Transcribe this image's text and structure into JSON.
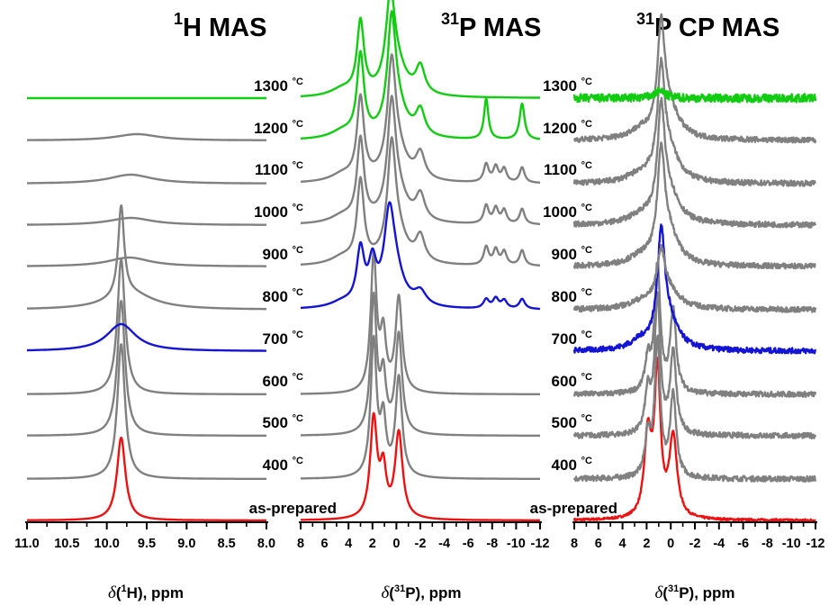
{
  "chart_data": [
    {
      "type": "line",
      "panel": "1H",
      "title": {
        "sup": "1",
        "main": "H MAS"
      },
      "xlabel": {
        "delta": "δ",
        "pre": "(",
        "sup": "1",
        "post": "H), ppm"
      },
      "xlim": [
        11.0,
        8.0
      ],
      "ticks": [
        "11.0",
        "10.5",
        "10.0",
        "9.5",
        "9.0",
        "8.5",
        "8.0"
      ],
      "tick_values": [
        11.0,
        10.5,
        10.0,
        9.5,
        9.0,
        8.5,
        8.0
      ],
      "series": [
        {
          "label": "as-prepared",
          "color": "#ee1111",
          "peaks": [
            [
              9.82,
              0.064,
              92
            ]
          ]
        },
        {
          "label": "400 °C",
          "color": "#808080",
          "peaks": [
            [
              9.82,
              0.058,
              150
            ]
          ]
        },
        {
          "label": "500 °C",
          "color": "#808080",
          "peaks": [
            [
              9.82,
              0.058,
              150
            ]
          ]
        },
        {
          "label": "600 °C",
          "color": "#808080",
          "peaks": [
            [
              9.82,
              0.058,
              150
            ]
          ]
        },
        {
          "label": "700 °C",
          "color": "#1414d4",
          "peaks": [
            [
              9.82,
              0.22,
              30
            ]
          ]
        },
        {
          "label": "800 °C",
          "color": "#808080",
          "peaks": [
            [
              9.82,
              0.045,
              100
            ],
            [
              9.7,
              0.35,
              18
            ]
          ]
        },
        {
          "label": "900 °C",
          "color": "#808080",
          "peaks": [
            [
              9.72,
              0.32,
              10
            ]
          ]
        },
        {
          "label": "1000 °C",
          "color": "#808080",
          "peaks": [
            [
              9.7,
              0.33,
              8
            ]
          ]
        },
        {
          "label": "1100 °C",
          "color": "#808080",
          "peaks": [
            [
              9.7,
              0.33,
              10
            ]
          ]
        },
        {
          "label": "1200 °C",
          "color": "#808080",
          "peaks": [
            [
              9.62,
              0.33,
              7
            ]
          ]
        },
        {
          "label": "1300 °C",
          "color": "#11cc11",
          "peaks": []
        }
      ]
    },
    {
      "type": "line",
      "panel": "31P",
      "title": {
        "sup": "31",
        "main": "P MAS"
      },
      "xlabel": {
        "delta": "δ",
        "pre": "(",
        "sup": "31",
        "post": "P), ppm"
      },
      "xlim": [
        8,
        -12
      ],
      "ticks": [
        "8",
        "6",
        "4",
        "2",
        "0",
        "-2",
        "-4",
        "-6",
        "-8",
        "-10",
        "-12"
      ],
      "tick_values": [
        8,
        6,
        4,
        2,
        0,
        -2,
        -4,
        -6,
        -8,
        -10,
        -12
      ],
      "series": [
        {
          "label": "as-prepared",
          "color": "#ee1111",
          "peaks": [
            [
              1.9,
              0.35,
              110
            ],
            [
              1.1,
              0.3,
              50
            ],
            [
              -0.2,
              0.38,
              95
            ]
          ]
        },
        {
          "label": "400 °C",
          "color": "#808080",
          "peaks": [
            [
              1.9,
              0.3,
              150
            ],
            [
              1.1,
              0.28,
              60
            ],
            [
              -0.2,
              0.33,
              110
            ]
          ]
        },
        {
          "label": "500 °C",
          "color": "#808080",
          "peaks": [
            [
              1.9,
              0.3,
              150
            ],
            [
              1.1,
              0.28,
              60
            ],
            [
              -0.2,
              0.33,
              110
            ]
          ]
        },
        {
          "label": "600 °C",
          "color": "#808080",
          "peaks": [
            [
              1.9,
              0.3,
              150
            ],
            [
              1.1,
              0.28,
              60
            ],
            [
              -0.2,
              0.33,
              105
            ]
          ]
        },
        {
          "label": "700 °C",
          "color": "#1414d4",
          "peaks": []
        },
        {
          "label": "800 °C",
          "color": "#1414d4",
          "peaks": [
            [
              3.0,
              0.38,
              60
            ],
            [
              2.0,
              0.38,
              42
            ],
            [
              0.6,
              0.5,
              80
            ],
            [
              0.2,
              0.9,
              40
            ],
            [
              4.5,
              1.2,
              6
            ],
            [
              -2.0,
              0.6,
              15
            ],
            [
              -7.5,
              0.28,
              10
            ],
            [
              -8.3,
              0.28,
              11
            ],
            [
              -9.0,
              0.28,
              9
            ],
            [
              -10.5,
              0.28,
              11
            ]
          ]
        },
        {
          "label": "900 °C",
          "color": "#808080",
          "peaks": [
            [
              3.0,
              0.35,
              90
            ],
            [
              0.4,
              0.4,
              110
            ],
            [
              0.0,
              1.0,
              35
            ],
            [
              4.5,
              1.2,
              8
            ],
            [
              -2.0,
              0.45,
              28
            ],
            [
              -7.5,
              0.25,
              20
            ],
            [
              -8.3,
              0.25,
              17
            ],
            [
              -9.0,
              0.25,
              15
            ],
            [
              -10.5,
              0.25,
              17
            ]
          ]
        },
        {
          "label": "1000 °C",
          "color": "#808080",
          "peaks": [
            [
              3.0,
              0.35,
              90
            ],
            [
              0.4,
              0.4,
              110
            ],
            [
              0.0,
              1.0,
              35
            ],
            [
              4.5,
              1.2,
              8
            ],
            [
              -2.0,
              0.45,
              28
            ],
            [
              -7.5,
              0.25,
              20
            ],
            [
              -8.3,
              0.25,
              17
            ],
            [
              -9.0,
              0.25,
              15
            ],
            [
              -10.5,
              0.25,
              17
            ]
          ]
        },
        {
          "label": "1100 °C",
          "color": "#808080",
          "peaks": [
            [
              3.0,
              0.35,
              90
            ],
            [
              0.4,
              0.4,
              110
            ],
            [
              0.0,
              1.0,
              35
            ],
            [
              4.5,
              1.2,
              8
            ],
            [
              -2.0,
              0.45,
              28
            ],
            [
              -7.5,
              0.25,
              20
            ],
            [
              -8.3,
              0.25,
              17
            ],
            [
              -9.0,
              0.25,
              15
            ],
            [
              -10.5,
              0.25,
              17
            ]
          ]
        },
        {
          "label": "1200 °C",
          "color": "#11cc11",
          "peaks": [
            [
              3.0,
              0.35,
              90
            ],
            [
              0.4,
              0.4,
              110
            ],
            [
              0.0,
              1.0,
              35
            ],
            [
              4.5,
              1.2,
              8
            ],
            [
              -2.0,
              0.45,
              28
            ],
            [
              -7.5,
              0.22,
              45
            ],
            [
              -10.5,
              0.25,
              40
            ]
          ]
        },
        {
          "label": "1300 °C",
          "color": "#11cc11",
          "peaks": [
            [
              3.0,
              0.35,
              80
            ],
            [
              0.5,
              0.45,
              95
            ],
            [
              0.0,
              1.0,
              30
            ],
            [
              4.5,
              1.2,
              8
            ],
            [
              -2.0,
              0.45,
              30
            ]
          ]
        }
      ]
    },
    {
      "type": "line",
      "panel": "31P CP",
      "title": {
        "sup": "31",
        "main": "P CP MAS"
      },
      "xlabel": {
        "delta": "δ",
        "pre": "(",
        "sup": "31",
        "post": "P), ppm"
      },
      "xlim": [
        8,
        -12
      ],
      "ticks": [
        "8",
        "6",
        "4",
        "2",
        "0",
        "-2",
        "-4",
        "-6",
        "-8",
        "-10",
        "-12"
      ],
      "tick_values": [
        8,
        6,
        4,
        2,
        0,
        -2,
        -4,
        -6,
        -8,
        -10,
        -12
      ],
      "series": [
        {
          "label": "as-prepared",
          "color": "#ee1111",
          "peaks": [
            [
              1.9,
              0.35,
              90
            ],
            [
              1.1,
              0.3,
              160
            ],
            [
              -0.2,
              0.38,
              90
            ]
          ]
        },
        {
          "label": "400 °C",
          "color": "#808080",
          "peaks": [
            [
              1.9,
              0.28,
              45
            ],
            [
              1.1,
              0.28,
              150
            ],
            [
              -0.2,
              0.3,
              90
            ]
          ]
        },
        {
          "label": "500 °C",
          "color": "#808080",
          "peaks": [
            [
              1.9,
              0.28,
              45
            ],
            [
              1.1,
              0.28,
              150
            ],
            [
              -0.2,
              0.3,
              90
            ]
          ]
        },
        {
          "label": "600 °C",
          "color": "#808080",
          "peaks": [
            [
              1.9,
              0.28,
              35
            ],
            [
              1.1,
              0.28,
              140
            ],
            [
              -0.2,
              0.3,
              90
            ]
          ]
        },
        {
          "label": "700 °C",
          "color": "#1414d4",
          "peaks": [
            [
              0.8,
              0.35,
              110
            ],
            [
              0.3,
              1.0,
              35
            ],
            [
              2.5,
              1.0,
              8
            ]
          ]
        },
        {
          "label": "800 °C",
          "color": "#808080",
          "peaks": [
            [
              0.8,
              0.4,
              50
            ],
            [
              0.3,
              1.2,
              20
            ],
            [
              2.5,
              1.2,
              6
            ]
          ]
        },
        {
          "label": "900 °C",
          "color": "#808080",
          "peaks": [
            [
              0.8,
              0.35,
              110
            ],
            [
              0.2,
              1.0,
              35
            ],
            [
              2.5,
              1.2,
              8
            ]
          ]
        },
        {
          "label": "1000 °C",
          "color": "#808080",
          "peaks": [
            [
              0.8,
              0.35,
              110
            ],
            [
              0.2,
              1.0,
              35
            ],
            [
              2.5,
              1.2,
              8
            ]
          ]
        },
        {
          "label": "1100 °C",
          "color": "#808080",
          "peaks": [
            [
              0.8,
              0.35,
              110
            ],
            [
              0.2,
              1.0,
              35
            ],
            [
              2.5,
              1.2,
              8
            ]
          ]
        },
        {
          "label": "1200 °C",
          "color": "#808080",
          "peaks": [
            [
              0.8,
              0.35,
              110
            ],
            [
              0.2,
              1.0,
              35
            ],
            [
              2.5,
              1.2,
              8
            ]
          ]
        },
        {
          "label": "1300 °C",
          "color": "#11cc11",
          "peaks": [
            [
              0.9,
              0.5,
              8
            ]
          ]
        }
      ]
    }
  ],
  "temperature_labels": [
    {
      "value": "1300",
      "unit": "°C"
    },
    {
      "value": "1200",
      "unit": "°C"
    },
    {
      "value": "1100",
      "unit": "°C"
    },
    {
      "value": "1000",
      "unit": "°C"
    },
    {
      "value": "900",
      "unit": "°C"
    },
    {
      "value": "800",
      "unit": "°C"
    },
    {
      "value": "700",
      "unit": "°C"
    },
    {
      "value": "600",
      "unit": "°C"
    },
    {
      "value": "500",
      "unit": "°C"
    },
    {
      "value": "400",
      "unit": "°C"
    }
  ],
  "as_prepared_label": "as-prepared"
}
